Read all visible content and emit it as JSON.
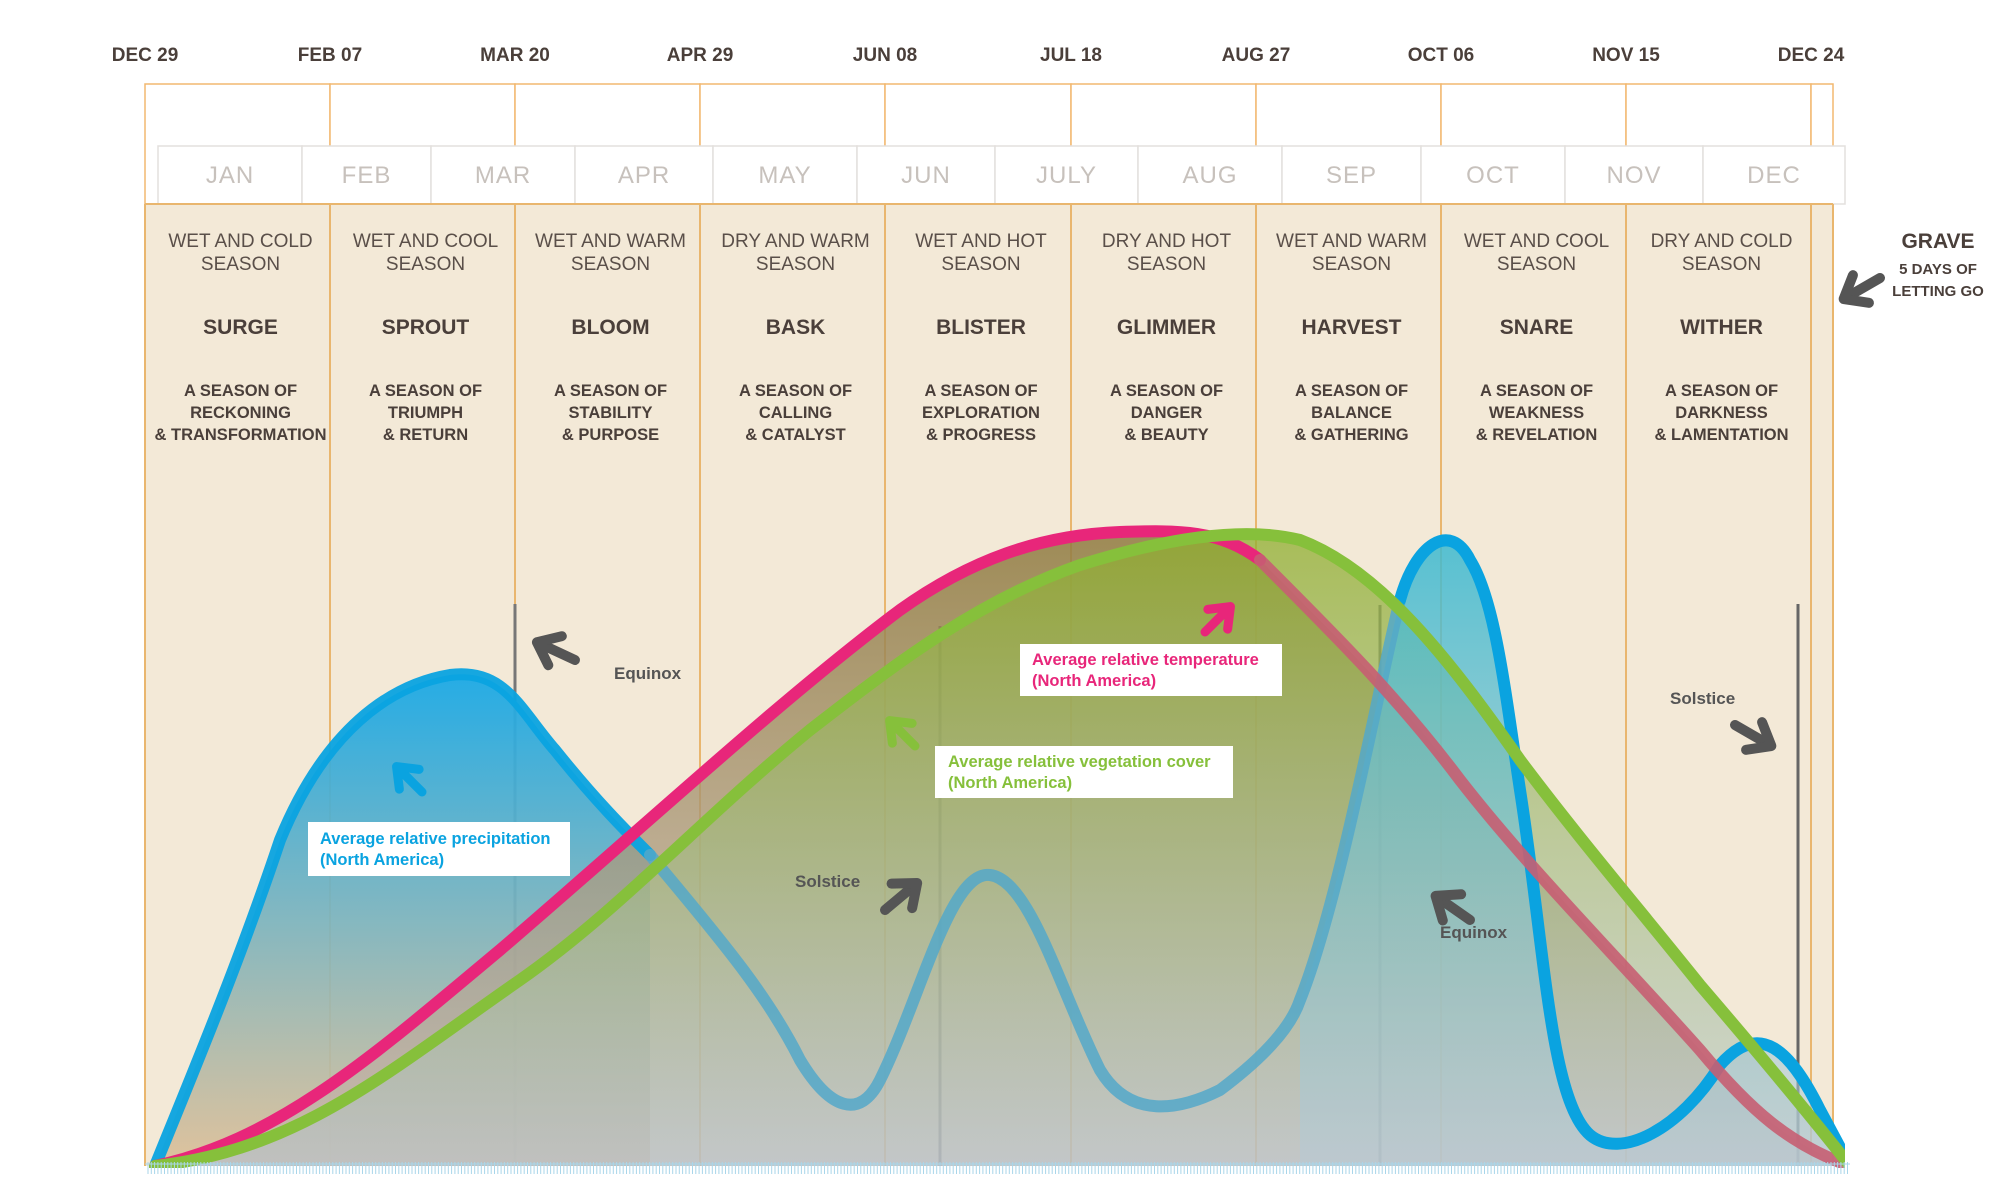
{
  "dates": [
    "DEC 29",
    "FEB 07",
    "MAR 20",
    "APR 29",
    "JUN 08",
    "JUL 18",
    "AUG 27",
    "OCT 06",
    "NOV 15",
    "DEC 24"
  ],
  "months": [
    "JAN",
    "FEB",
    "MAR",
    "APR",
    "MAY",
    "JUN",
    "JULY",
    "AUG",
    "SEP",
    "OCT",
    "NOV",
    "DEC"
  ],
  "seasons": [
    {
      "climate_1": "WET AND COLD",
      "climate_2": "SEASON",
      "name": "SURGE",
      "desc_1": "A SEASON OF",
      "desc_2": "RECKONING",
      "desc_3": "& TRANSFORMATION"
    },
    {
      "climate_1": "WET AND COOL",
      "climate_2": "SEASON",
      "name": "SPROUT",
      "desc_1": "A SEASON OF",
      "desc_2": "TRIUMPH",
      "desc_3": "& RETURN"
    },
    {
      "climate_1": "WET AND WARM",
      "climate_2": "SEASON",
      "name": "BLOOM",
      "desc_1": "A SEASON OF",
      "desc_2": "STABILITY",
      "desc_3": "& PURPOSE"
    },
    {
      "climate_1": "DRY AND WARM",
      "climate_2": "SEASON",
      "name": "BASK",
      "desc_1": "A SEASON OF",
      "desc_2": "CALLING",
      "desc_3": "& CATALYST"
    },
    {
      "climate_1": "WET AND HOT",
      "climate_2": "SEASON",
      "name": "BLISTER",
      "desc_1": "A SEASON OF",
      "desc_2": "EXPLORATION",
      "desc_3": "& PROGRESS"
    },
    {
      "climate_1": "DRY AND HOT",
      "climate_2": "SEASON",
      "name": "GLIMMER",
      "desc_1": "A SEASON OF",
      "desc_2": "DANGER",
      "desc_3": "& BEAUTY"
    },
    {
      "climate_1": "WET AND WARM",
      "climate_2": "SEASON",
      "name": "HARVEST",
      "desc_1": "A SEASON OF",
      "desc_2": "BALANCE",
      "desc_3": "& GATHERING"
    },
    {
      "climate_1": "WET AND COOL",
      "climate_2": "SEASON",
      "name": "SNARE",
      "desc_1": "A SEASON OF",
      "desc_2": "WEAKNESS",
      "desc_3": "& REVELATION"
    },
    {
      "climate_1": "DRY AND COLD",
      "climate_2": "SEASON",
      "name": "WITHER",
      "desc_1": "A SEASON OF",
      "desc_2": "DARKNESS",
      "desc_3": "& LAMENTATION"
    }
  ],
  "grave": {
    "title": "GRAVE",
    "sub_1": "5 DAYS OF",
    "sub_2": "LETTING GO"
  },
  "events": [
    {
      "key": "equinox_spring",
      "label": "Equinox"
    },
    {
      "key": "solstice_summer",
      "label": "Solstice"
    },
    {
      "key": "equinox_fall",
      "label": "Equinox"
    },
    {
      "key": "solstice_winter",
      "label": "Solstice"
    }
  ],
  "legend": {
    "precipitation": {
      "line_1": "Average relative precipitation",
      "line_2": "(North America)",
      "color": "#0aa3e0"
    },
    "temperature": {
      "line_1": "Average relative temperature",
      "line_2": "(North America)",
      "color": "#e8267a"
    },
    "vegetation": {
      "line_1": "Average relative vegetation cover",
      "line_2": "(North America)",
      "color": "#86c03b"
    }
  },
  "colors": {
    "panel": "#f3e9d7",
    "border": "#f2b870",
    "arrow": "#555555",
    "divider": "#e2b57a"
  }
}
